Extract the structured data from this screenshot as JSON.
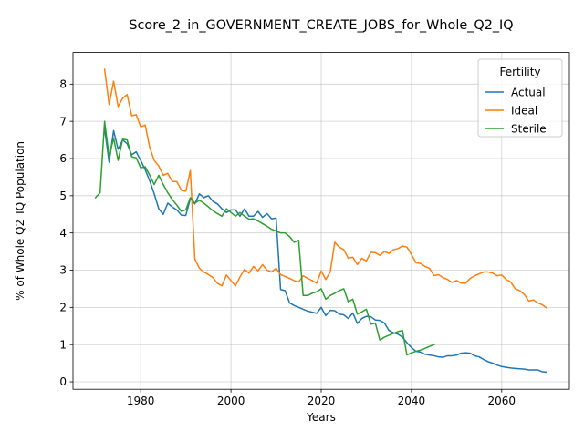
{
  "chart_data": {
    "type": "line",
    "title": "Score_2_in_GOVERNMENT_CREATE_JOBS_for_Whole_Q2_IQ",
    "xlabel": "Years",
    "ylabel": "% of Whole Q2_IQ Population",
    "xlim": [
      1965,
      2075
    ],
    "ylim": [
      -0.2,
      8.85
    ],
    "xticks": [
      1980,
      2000,
      2020,
      2040,
      2060
    ],
    "yticks": [
      0,
      1,
      2,
      3,
      4,
      5,
      6,
      7,
      8
    ],
    "grid": true,
    "legend": {
      "title": "Fertility",
      "placement": "top-right"
    },
    "series": [
      {
        "name": "Actual",
        "color": "#1f77b4",
        "points": [
          [
            1972,
            6.8
          ],
          [
            1973,
            5.9
          ],
          [
            1974,
            6.75
          ],
          [
            1975,
            6.25
          ],
          [
            1976,
            6.5
          ],
          [
            1977,
            6.4
          ],
          [
            1978,
            6.1
          ],
          [
            1979,
            6.18
          ],
          [
            1980,
            5.95
          ],
          [
            1981,
            5.7
          ],
          [
            1982,
            5.4
          ],
          [
            1983,
            5.05
          ],
          [
            1984,
            4.65
          ],
          [
            1985,
            4.5
          ],
          [
            1986,
            4.8
          ],
          [
            1987,
            4.7
          ],
          [
            1988,
            4.62
          ],
          [
            1989,
            4.48
          ],
          [
            1990,
            4.47
          ],
          [
            1991,
            4.92
          ],
          [
            1992,
            4.78
          ],
          [
            1993,
            5.05
          ],
          [
            1994,
            4.95
          ],
          [
            1995,
            5.0
          ],
          [
            1996,
            4.85
          ],
          [
            1997,
            4.78
          ],
          [
            1998,
            4.65
          ],
          [
            1999,
            4.55
          ],
          [
            2000,
            4.62
          ],
          [
            2001,
            4.62
          ],
          [
            2002,
            4.45
          ],
          [
            2003,
            4.65
          ],
          [
            2004,
            4.45
          ],
          [
            2005,
            4.45
          ],
          [
            2006,
            4.58
          ],
          [
            2007,
            4.42
          ],
          [
            2008,
            4.52
          ],
          [
            2009,
            4.38
          ],
          [
            2010,
            4.4
          ],
          [
            2011,
            2.48
          ],
          [
            2012,
            2.45
          ],
          [
            2013,
            2.12
          ],
          [
            2014,
            2.05
          ],
          [
            2015,
            2.0
          ],
          [
            2016,
            1.95
          ],
          [
            2017,
            1.9
          ],
          [
            2018,
            1.87
          ],
          [
            2019,
            1.84
          ],
          [
            2020,
            2.0
          ],
          [
            2021,
            1.78
          ],
          [
            2022,
            1.92
          ],
          [
            2023,
            1.91
          ],
          [
            2024,
            1.82
          ],
          [
            2025,
            1.8
          ],
          [
            2026,
            1.7
          ],
          [
            2027,
            1.85
          ],
          [
            2028,
            1.57
          ],
          [
            2029,
            1.7
          ],
          [
            2030,
            1.76
          ],
          [
            2031,
            1.75
          ],
          [
            2032,
            1.66
          ],
          [
            2033,
            1.65
          ],
          [
            2034,
            1.58
          ],
          [
            2035,
            1.38
          ],
          [
            2036,
            1.32
          ],
          [
            2037,
            1.28
          ],
          [
            2038,
            1.2
          ],
          [
            2039,
            1.05
          ],
          [
            2040,
            0.92
          ],
          [
            2041,
            0.82
          ],
          [
            2042,
            0.8
          ],
          [
            2043,
            0.74
          ],
          [
            2044,
            0.72
          ],
          [
            2045,
            0.7
          ],
          [
            2046,
            0.67
          ],
          [
            2047,
            0.66
          ],
          [
            2048,
            0.7
          ],
          [
            2049,
            0.7
          ],
          [
            2050,
            0.72
          ],
          [
            2051,
            0.77
          ],
          [
            2052,
            0.78
          ],
          [
            2053,
            0.77
          ],
          [
            2054,
            0.7
          ],
          [
            2055,
            0.67
          ],
          [
            2056,
            0.6
          ],
          [
            2057,
            0.54
          ],
          [
            2058,
            0.5
          ],
          [
            2059,
            0.45
          ],
          [
            2060,
            0.41
          ],
          [
            2061,
            0.39
          ],
          [
            2062,
            0.37
          ],
          [
            2063,
            0.36
          ],
          [
            2064,
            0.35
          ],
          [
            2065,
            0.34
          ],
          [
            2066,
            0.32
          ],
          [
            2067,
            0.32
          ],
          [
            2068,
            0.32
          ],
          [
            2069,
            0.27
          ],
          [
            2070,
            0.26
          ]
        ]
      },
      {
        "name": "Ideal",
        "color": "#ff7f0e",
        "points": [
          [
            1972,
            8.4
          ],
          [
            1973,
            7.45
          ],
          [
            1974,
            8.08
          ],
          [
            1975,
            7.4
          ],
          [
            1976,
            7.62
          ],
          [
            1977,
            7.72
          ],
          [
            1978,
            7.15
          ],
          [
            1979,
            7.18
          ],
          [
            1980,
            6.85
          ],
          [
            1981,
            6.9
          ],
          [
            1982,
            6.3
          ],
          [
            1983,
            5.95
          ],
          [
            1984,
            5.8
          ],
          [
            1985,
            5.55
          ],
          [
            1986,
            5.6
          ],
          [
            1987,
            5.38
          ],
          [
            1988,
            5.38
          ],
          [
            1989,
            5.15
          ],
          [
            1990,
            5.12
          ],
          [
            1991,
            5.68
          ],
          [
            1992,
            3.3
          ],
          [
            1993,
            3.05
          ],
          [
            1994,
            2.95
          ],
          [
            1995,
            2.88
          ],
          [
            1996,
            2.8
          ],
          [
            1997,
            2.65
          ],
          [
            1998,
            2.58
          ],
          [
            1999,
            2.87
          ],
          [
            2000,
            2.72
          ],
          [
            2001,
            2.58
          ],
          [
            2002,
            2.82
          ],
          [
            2003,
            3.02
          ],
          [
            2004,
            2.92
          ],
          [
            2005,
            3.1
          ],
          [
            2006,
            2.98
          ],
          [
            2007,
            3.15
          ],
          [
            2008,
            3.0
          ],
          [
            2009,
            2.95
          ],
          [
            2010,
            3.05
          ],
          [
            2011,
            2.88
          ],
          [
            2012,
            2.83
          ],
          [
            2013,
            2.78
          ],
          [
            2014,
            2.72
          ],
          [
            2015,
            2.68
          ],
          [
            2016,
            2.85
          ],
          [
            2017,
            2.78
          ],
          [
            2018,
            2.72
          ],
          [
            2019,
            2.65
          ],
          [
            2020,
            2.98
          ],
          [
            2021,
            2.75
          ],
          [
            2022,
            2.95
          ],
          [
            2023,
            3.75
          ],
          [
            2024,
            3.62
          ],
          [
            2025,
            3.55
          ],
          [
            2026,
            3.32
          ],
          [
            2027,
            3.35
          ],
          [
            2028,
            3.15
          ],
          [
            2029,
            3.32
          ],
          [
            2030,
            3.25
          ],
          [
            2031,
            3.48
          ],
          [
            2032,
            3.47
          ],
          [
            2033,
            3.4
          ],
          [
            2034,
            3.5
          ],
          [
            2035,
            3.45
          ],
          [
            2036,
            3.55
          ],
          [
            2037,
            3.58
          ],
          [
            2038,
            3.65
          ],
          [
            2039,
            3.62
          ],
          [
            2040,
            3.42
          ],
          [
            2041,
            3.2
          ],
          [
            2042,
            3.18
          ],
          [
            2043,
            3.1
          ],
          [
            2044,
            3.05
          ],
          [
            2045,
            2.85
          ],
          [
            2046,
            2.88
          ],
          [
            2047,
            2.8
          ],
          [
            2048,
            2.75
          ],
          [
            2049,
            2.67
          ],
          [
            2050,
            2.72
          ],
          [
            2051,
            2.65
          ],
          [
            2052,
            2.65
          ],
          [
            2053,
            2.78
          ],
          [
            2054,
            2.85
          ],
          [
            2055,
            2.9
          ],
          [
            2056,
            2.95
          ],
          [
            2057,
            2.95
          ],
          [
            2058,
            2.92
          ],
          [
            2059,
            2.85
          ],
          [
            2060,
            2.87
          ],
          [
            2061,
            2.75
          ],
          [
            2062,
            2.68
          ],
          [
            2063,
            2.5
          ],
          [
            2064,
            2.45
          ],
          [
            2065,
            2.35
          ],
          [
            2066,
            2.17
          ],
          [
            2067,
            2.2
          ],
          [
            2068,
            2.12
          ],
          [
            2069,
            2.07
          ],
          [
            2070,
            1.98
          ]
        ]
      },
      {
        "name": "Sterile",
        "color": "#2ca02c",
        "points": [
          [
            1970,
            4.95
          ],
          [
            1971,
            5.08
          ],
          [
            1972,
            7.0
          ],
          [
            1973,
            6.05
          ],
          [
            1974,
            6.55
          ],
          [
            1975,
            5.95
          ],
          [
            1976,
            6.52
          ],
          [
            1977,
            6.5
          ],
          [
            1978,
            6.05
          ],
          [
            1979,
            6.02
          ],
          [
            1980,
            5.75
          ],
          [
            1981,
            5.78
          ],
          [
            1982,
            5.55
          ],
          [
            1983,
            5.3
          ],
          [
            1984,
            5.55
          ],
          [
            1985,
            5.3
          ],
          [
            1986,
            5.08
          ],
          [
            1987,
            4.9
          ],
          [
            1988,
            4.75
          ],
          [
            1989,
            4.58
          ],
          [
            1990,
            4.62
          ],
          [
            1991,
            4.95
          ],
          [
            1992,
            4.8
          ],
          [
            1993,
            4.88
          ],
          [
            1994,
            4.8
          ],
          [
            1995,
            4.7
          ],
          [
            1996,
            4.6
          ],
          [
            1997,
            4.52
          ],
          [
            1998,
            4.45
          ],
          [
            1999,
            4.65
          ],
          [
            2000,
            4.55
          ],
          [
            2001,
            4.45
          ],
          [
            2002,
            4.55
          ],
          [
            2003,
            4.45
          ],
          [
            2004,
            4.37
          ],
          [
            2005,
            4.38
          ],
          [
            2006,
            4.32
          ],
          [
            2007,
            4.25
          ],
          [
            2008,
            4.18
          ],
          [
            2009,
            4.1
          ],
          [
            2010,
            4.05
          ],
          [
            2011,
            4.0
          ],
          [
            2012,
            4.0
          ],
          [
            2013,
            3.9
          ],
          [
            2014,
            3.75
          ],
          [
            2015,
            3.8
          ],
          [
            2016,
            2.32
          ],
          [
            2017,
            2.32
          ],
          [
            2018,
            2.38
          ],
          [
            2019,
            2.42
          ],
          [
            2020,
            2.5
          ],
          [
            2021,
            2.22
          ],
          [
            2022,
            2.32
          ],
          [
            2023,
            2.38
          ],
          [
            2024,
            2.45
          ],
          [
            2025,
            2.5
          ],
          [
            2026,
            2.15
          ],
          [
            2027,
            2.22
          ],
          [
            2028,
            1.82
          ],
          [
            2029,
            1.88
          ],
          [
            2030,
            1.95
          ],
          [
            2031,
            1.55
          ],
          [
            2032,
            1.58
          ],
          [
            2033,
            1.12
          ],
          [
            2034,
            1.2
          ],
          [
            2035,
            1.25
          ],
          [
            2036,
            1.3
          ],
          [
            2037,
            1.35
          ],
          [
            2038,
            1.38
          ],
          [
            2039,
            0.72
          ],
          [
            2040,
            0.78
          ],
          [
            2041,
            0.82
          ],
          [
            2042,
            0.85
          ],
          [
            2043,
            0.9
          ],
          [
            2044,
            0.95
          ],
          [
            2045,
            1.0
          ]
        ]
      }
    ]
  }
}
